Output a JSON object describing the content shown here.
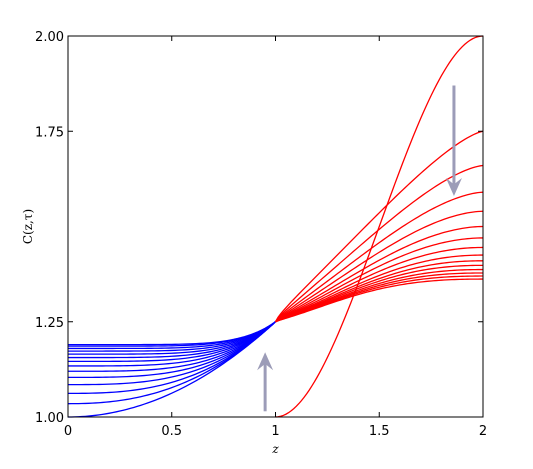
{
  "chart_data": {
    "type": "line",
    "xlabel": "z",
    "ylabel": "C(z,τ)",
    "xlim": [
      0,
      2
    ],
    "ylim": [
      1.0,
      2.0
    ],
    "x_ticks": [
      "0",
      "0.5",
      "1",
      "1.5",
      "2"
    ],
    "y_ticks": [
      "1.00",
      "1.25",
      "1.75",
      "2.00"
    ],
    "y_tick_values": [
      1.0,
      1.25,
      1.75,
      2.0
    ],
    "grid": false,
    "colors": {
      "left_region": "#0000ff",
      "right_region": "#ff0000",
      "arrow": "#9c9cb8"
    },
    "series_left_z": [
      0,
      1
    ],
    "series_left_start_values": [
      1.0,
      1.035,
      1.062,
      1.085,
      1.104,
      1.12,
      1.134,
      1.146,
      1.156,
      1.165,
      1.173,
      1.18,
      1.186,
      1.19
    ],
    "series_left_end_value": 1.25,
    "series_right_z": [
      1,
      2
    ],
    "series_right_end_values": [
      2.0,
      1.75,
      1.66,
      1.59,
      1.54,
      1.5,
      1.47,
      1.445,
      1.425,
      1.41,
      1.398,
      1.387,
      1.378,
      1.37,
      1.362
    ],
    "series_right_start_value": 1.25,
    "annotations": [
      {
        "type": "arrow",
        "direction": "up",
        "z": 0.95,
        "from": 1.015,
        "to": 1.17
      },
      {
        "type": "arrow",
        "direction": "down",
        "z": 1.86,
        "from": 1.87,
        "to": 1.58
      }
    ]
  }
}
